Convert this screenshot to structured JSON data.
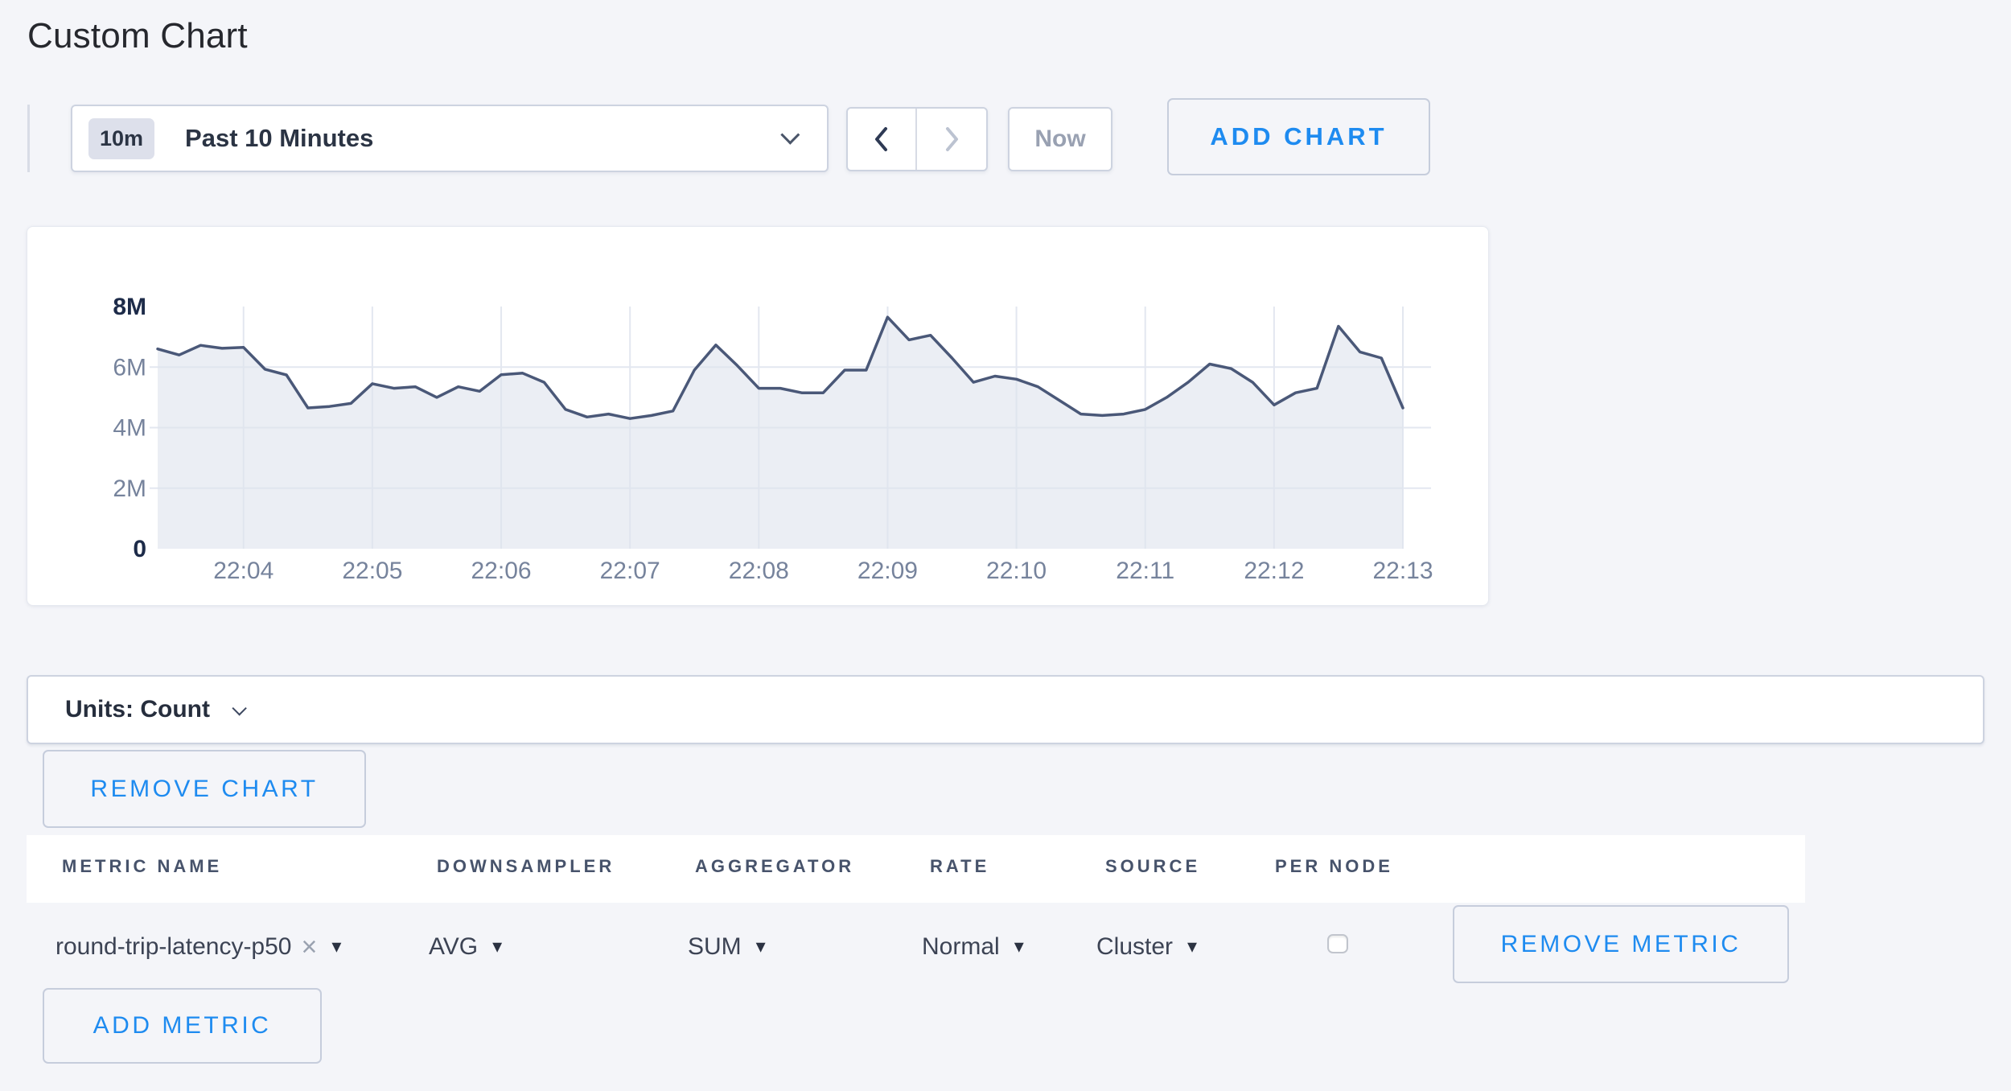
{
  "page": {
    "title": "Custom Chart",
    "background": "#f4f5f9",
    "accent_blue": "#1e8bf0"
  },
  "icons": {
    "caret_down": "▾",
    "close": "×"
  },
  "toolbar": {
    "time_window_badge": "10m",
    "time_window_label": "Past 10 Minutes",
    "now_label": "Now",
    "add_chart_label": "ADD CHART"
  },
  "chart_data": {
    "type": "area",
    "title": "",
    "xlabel": "",
    "ylabel": "",
    "x_start": "22:03:20",
    "x_end": "22:13:00",
    "interval_seconds": 10,
    "values_millions": [
      6.6,
      6.4,
      6.72,
      6.62,
      6.65,
      5.93,
      5.74,
      4.65,
      4.7,
      4.8,
      5.45,
      5.3,
      5.35,
      5.0,
      5.35,
      5.2,
      5.75,
      5.8,
      5.5,
      4.6,
      4.35,
      4.45,
      4.3,
      4.4,
      4.55,
      5.9,
      6.73,
      6.05,
      5.3,
      5.3,
      5.15,
      5.15,
      5.9,
      5.9,
      7.65,
      6.9,
      7.05,
      6.3,
      5.5,
      5.7,
      5.6,
      5.35,
      4.9,
      4.45,
      4.4,
      4.45,
      4.6,
      5.0,
      5.5,
      6.1,
      5.95,
      5.5,
      4.75,
      5.15,
      5.3,
      7.35,
      6.5,
      6.3,
      4.65
    ],
    "ylim": [
      0,
      8
    ],
    "yticks": [
      {
        "label": "0",
        "value": 0,
        "bold": true
      },
      {
        "label": "2M",
        "value": 2,
        "bold": false
      },
      {
        "label": "4M",
        "value": 4,
        "bold": false
      },
      {
        "label": "6M",
        "value": 6,
        "bold": false
      },
      {
        "label": "8M",
        "value": 8,
        "bold": true
      }
    ],
    "xticks": [
      "22:04",
      "22:05",
      "22:06",
      "22:07",
      "22:08",
      "22:09",
      "22:10",
      "22:11",
      "22:12",
      "22:13"
    ],
    "first_tick_offset_seconds": 40,
    "tick_spacing_seconds": 60,
    "grid": true,
    "legend": "none",
    "line_color": "#4a5878",
    "fill_color": "rgba(223,227,237,0.62)",
    "grid_color": "#e3e7f0",
    "tick_label_color": "#76839c",
    "emphasis_label_color": "#1d2b49"
  },
  "units_bar": {
    "label": "Units: Count"
  },
  "buttons": {
    "remove_chart": "REMOVE CHART",
    "remove_metric": "REMOVE METRIC",
    "add_metric": "ADD METRIC"
  },
  "metrics_table": {
    "headers": [
      "METRIC NAME",
      "DOWNSAMPLER",
      "AGGREGATOR",
      "RATE",
      "SOURCE",
      "PER NODE"
    ],
    "row": {
      "metric_name": "round-trip-latency-p50",
      "downsampler": "AVG",
      "aggregator": "SUM",
      "rate": "Normal",
      "source": "Cluster",
      "per_node_checked": false
    }
  }
}
